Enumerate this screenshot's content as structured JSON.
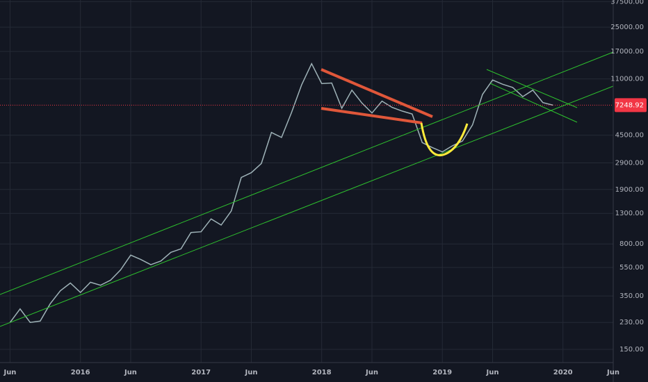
{
  "chart_data": {
    "type": "line",
    "log_scale": true,
    "grid": true,
    "color": "#9fb3b8",
    "x": [
      "2015-06",
      "2015-07",
      "2015-08",
      "2015-09",
      "2015-10",
      "2015-11",
      "2015-12",
      "2016-01",
      "2016-02",
      "2016-03",
      "2016-04",
      "2016-05",
      "2016-06",
      "2016-07",
      "2016-08",
      "2016-09",
      "2016-10",
      "2016-11",
      "2016-12",
      "2017-01",
      "2017-02",
      "2017-03",
      "2017-04",
      "2017-05",
      "2017-06",
      "2017-07",
      "2017-08",
      "2017-09",
      "2017-10",
      "2017-11",
      "2017-12",
      "2018-01",
      "2018-02",
      "2018-03",
      "2018-04",
      "2018-05",
      "2018-06",
      "2018-07",
      "2018-08",
      "2018-09",
      "2018-10",
      "2018-11",
      "2018-12",
      "2019-01",
      "2019-02",
      "2019-03",
      "2019-04",
      "2019-05",
      "2019-06",
      "2019-07",
      "2019-08",
      "2019-09",
      "2019-10",
      "2019-11",
      "2019-12"
    ],
    "values": [
      230,
      285,
      230,
      235,
      310,
      380,
      430,
      370,
      435,
      415,
      450,
      530,
      670,
      625,
      575,
      610,
      700,
      740,
      960,
      970,
      1190,
      1080,
      1350,
      2300,
      2480,
      2870,
      4700,
      4340,
      6450,
      10000,
      14000,
      10200,
      10300,
      6900,
      9200,
      7500,
      6400,
      7730,
      7000,
      6600,
      6300,
      4000,
      3700,
      3450,
      3800,
      4100,
      5300,
      8600,
      10800,
      10100,
      9600,
      8300,
      9200,
      7550,
      7249
    ],
    "xlim": [
      "2015-05",
      "2020-06"
    ],
    "xticks": [
      {
        "value": "2015-06",
        "label": "Jun"
      },
      {
        "value": "2016-01",
        "label": "2016"
      },
      {
        "value": "2016-06",
        "label": "Jun"
      },
      {
        "value": "2017-01",
        "label": "2017"
      },
      {
        "value": "2017-06",
        "label": "Jun"
      },
      {
        "value": "2018-01",
        "label": "2018"
      },
      {
        "value": "2018-06",
        "label": "Jun"
      },
      {
        "value": "2019-01",
        "label": "2019"
      },
      {
        "value": "2019-06",
        "label": "Jun"
      },
      {
        "value": "2020-01",
        "label": "2020"
      },
      {
        "value": "2020-06",
        "label": "Jun"
      }
    ],
    "ylim": [
      121.6,
      38500
    ],
    "yticks": [
      {
        "value": 150,
        "label": "150.00"
      },
      {
        "value": 230,
        "label": "230.00"
      },
      {
        "value": 350,
        "label": "350.00"
      },
      {
        "value": 550,
        "label": "550.00"
      },
      {
        "value": 800,
        "label": "800.00"
      },
      {
        "value": 1300,
        "label": "1300.00"
      },
      {
        "value": 1900,
        "label": "1900.00"
      },
      {
        "value": 2900,
        "label": "2900.00"
      },
      {
        "value": 4500,
        "label": "4500.00"
      },
      {
        "value": 11000,
        "label": "11000.00"
      },
      {
        "value": 17000,
        "label": "17000.00"
      },
      {
        "value": 25000,
        "label": "25000.00"
      },
      {
        "value": 37500,
        "label": "37500.00"
      }
    ],
    "last_price": {
      "value": 7248.92,
      "label": "7248.92",
      "color": "#f23645"
    }
  }
}
